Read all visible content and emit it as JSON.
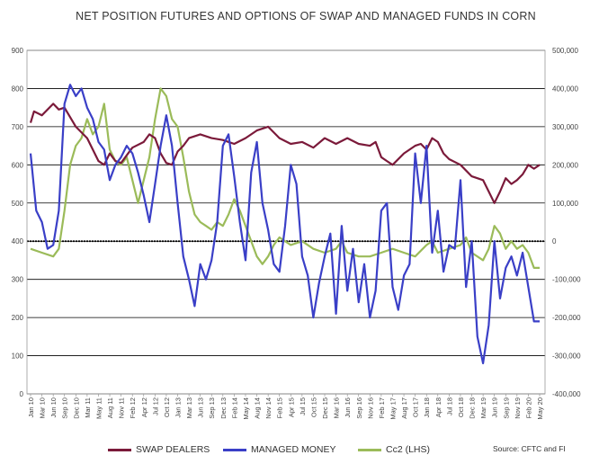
{
  "chart_data": {
    "type": "line",
    "title": "NET POSITION FUTURES AND OPTIONS OF SWAP AND MANAGED FUNDS IN CORN",
    "left_axis": {
      "ticks": [
        0,
        100,
        200,
        300,
        400,
        500,
        600,
        700,
        800,
        900
      ],
      "range": [
        0,
        900
      ]
    },
    "right_axis": {
      "ticks": [
        -400000,
        -300000,
        -200000,
        -100000,
        0,
        100000,
        200000,
        300000,
        400000,
        500000
      ],
      "tick_labels": [
        "-400,000",
        "-300,000",
        "-200,000",
        "-100,000",
        "0",
        "100,000",
        "200,000",
        "300,000",
        "400,000",
        "500,000"
      ],
      "range": [
        -400000,
        500000
      ]
    },
    "x_tick_labels": [
      "Jan 10",
      "Mar 10",
      "Jun 10",
      "Sep 10",
      "Dec 10",
      "Mar 11",
      "May 11",
      "Aug 11",
      "Nov 11",
      "Feb 12",
      "Apr 12",
      "Jul 12",
      "Oct 12",
      "Jan 13",
      "Mar 13",
      "Jun 13",
      "Sep 13",
      "Dec 13",
      "Feb 14",
      "May 14",
      "Aug 14",
      "Nov 14",
      "Feb 15",
      "Apr 15",
      "Jul 15",
      "Oct 15",
      "Dec 15",
      "Mar 16",
      "Jun 16",
      "Sep 16",
      "Nov 16",
      "Feb 17",
      "May 17",
      "Aug 17",
      "Oct 17",
      "Jan 18",
      "Apr 18",
      "Jul 18",
      "Oct 18",
      "Dec 18",
      "Mar 19",
      "Jun 19",
      "Sep 19",
      "Nov 19",
      "Feb 20",
      "May 20"
    ],
    "x_range": [
      0,
      45
    ],
    "grid": "horizontal",
    "legend": "bottom",
    "series": [
      {
        "name": "SWAP DEALERS",
        "axis": "right",
        "color": "#7b1a3a",
        "points": [
          [
            0,
            310000
          ],
          [
            0.3,
            340000
          ],
          [
            1,
            330000
          ],
          [
            2,
            360000
          ],
          [
            2.5,
            345000
          ],
          [
            3,
            350000
          ],
          [
            3.5,
            325000
          ],
          [
            4,
            300000
          ],
          [
            5,
            270000
          ],
          [
            5.5,
            240000
          ],
          [
            6,
            210000
          ],
          [
            6.5,
            200000
          ],
          [
            7,
            230000
          ],
          [
            7.5,
            210000
          ],
          [
            8,
            205000
          ],
          [
            9,
            245000
          ],
          [
            10,
            260000
          ],
          [
            10.5,
            280000
          ],
          [
            11,
            270000
          ],
          [
            11.5,
            230000
          ],
          [
            12,
            205000
          ],
          [
            12.5,
            200000
          ],
          [
            13,
            235000
          ],
          [
            13.5,
            250000
          ],
          [
            14,
            270000
          ],
          [
            15,
            280000
          ],
          [
            16,
            270000
          ],
          [
            17,
            265000
          ],
          [
            18,
            255000
          ],
          [
            19,
            270000
          ],
          [
            20,
            290000
          ],
          [
            21,
            300000
          ],
          [
            22,
            270000
          ],
          [
            23,
            255000
          ],
          [
            24,
            260000
          ],
          [
            25,
            245000
          ],
          [
            26,
            270000
          ],
          [
            27,
            255000
          ],
          [
            28,
            270000
          ],
          [
            29,
            255000
          ],
          [
            30,
            250000
          ],
          [
            30.5,
            260000
          ],
          [
            31,
            220000
          ],
          [
            31.5,
            210000
          ],
          [
            32,
            200000
          ],
          [
            33,
            230000
          ],
          [
            34,
            250000
          ],
          [
            34.5,
            255000
          ],
          [
            35,
            240000
          ],
          [
            35.5,
            270000
          ],
          [
            36,
            260000
          ],
          [
            36.5,
            230000
          ],
          [
            37,
            215000
          ],
          [
            38,
            200000
          ],
          [
            39,
            170000
          ],
          [
            40,
            160000
          ],
          [
            40.5,
            130000
          ],
          [
            41,
            100000
          ],
          [
            41.5,
            130000
          ],
          [
            42,
            165000
          ],
          [
            42.5,
            150000
          ],
          [
            43,
            160000
          ],
          [
            43.5,
            175000
          ],
          [
            44,
            200000
          ],
          [
            44.5,
            190000
          ],
          [
            45,
            200000
          ]
        ]
      },
      {
        "name": "MANAGED MONEY",
        "axis": "right",
        "color": "#3a3fc7",
        "points": [
          [
            0,
            230000
          ],
          [
            0.5,
            80000
          ],
          [
            1,
            50000
          ],
          [
            1.5,
            -20000
          ],
          [
            2,
            -10000
          ],
          [
            2.5,
            80000
          ],
          [
            3,
            360000
          ],
          [
            3.5,
            410000
          ],
          [
            4,
            380000
          ],
          [
            4.5,
            400000
          ],
          [
            5,
            350000
          ],
          [
            5.5,
            320000
          ],
          [
            6,
            260000
          ],
          [
            6.5,
            240000
          ],
          [
            7,
            160000
          ],
          [
            7.5,
            200000
          ],
          [
            8,
            220000
          ],
          [
            8.5,
            250000
          ],
          [
            9,
            230000
          ],
          [
            9.5,
            180000
          ],
          [
            10,
            120000
          ],
          [
            10.5,
            50000
          ],
          [
            11,
            150000
          ],
          [
            11.5,
            250000
          ],
          [
            12,
            330000
          ],
          [
            12.5,
            250000
          ],
          [
            13,
            100000
          ],
          [
            13.5,
            -40000
          ],
          [
            14,
            -100000
          ],
          [
            14.5,
            -170000
          ],
          [
            15,
            -60000
          ],
          [
            15.5,
            -100000
          ],
          [
            16,
            -50000
          ],
          [
            16.5,
            50000
          ],
          [
            17,
            250000
          ],
          [
            17.5,
            280000
          ],
          [
            18,
            170000
          ],
          [
            18.5,
            50000
          ],
          [
            19,
            -50000
          ],
          [
            19.5,
            180000
          ],
          [
            20,
            260000
          ],
          [
            20.5,
            100000
          ],
          [
            21,
            30000
          ],
          [
            21.5,
            -60000
          ],
          [
            22,
            -80000
          ],
          [
            22.5,
            40000
          ],
          [
            23,
            200000
          ],
          [
            23.5,
            150000
          ],
          [
            24,
            -40000
          ],
          [
            24.5,
            -90000
          ],
          [
            25,
            -200000
          ],
          [
            25.5,
            -110000
          ],
          [
            26,
            -40000
          ],
          [
            26.5,
            20000
          ],
          [
            27,
            -190000
          ],
          [
            27.5,
            40000
          ],
          [
            28,
            -130000
          ],
          [
            28.5,
            -20000
          ],
          [
            29,
            -160000
          ],
          [
            29.5,
            -60000
          ],
          [
            30,
            -200000
          ],
          [
            30.5,
            -130000
          ],
          [
            31,
            80000
          ],
          [
            31.5,
            100000
          ],
          [
            32,
            -120000
          ],
          [
            32.5,
            -180000
          ],
          [
            33,
            -90000
          ],
          [
            33.5,
            -60000
          ],
          [
            34,
            230000
          ],
          [
            34.5,
            100000
          ],
          [
            35,
            250000
          ],
          [
            35.5,
            -30000
          ],
          [
            36,
            80000
          ],
          [
            36.5,
            -80000
          ],
          [
            37,
            -10000
          ],
          [
            37.5,
            -20000
          ],
          [
            38,
            160000
          ],
          [
            38.5,
            -120000
          ],
          [
            39,
            0
          ],
          [
            39.5,
            -250000
          ],
          [
            40,
            -320000
          ],
          [
            40.5,
            -220000
          ],
          [
            41,
            0
          ],
          [
            41.5,
            -150000
          ],
          [
            42,
            -70000
          ],
          [
            42.5,
            -40000
          ],
          [
            43,
            -90000
          ],
          [
            43.5,
            -30000
          ],
          [
            44,
            -120000
          ],
          [
            44.5,
            -210000
          ],
          [
            45,
            -210000
          ]
        ]
      },
      {
        "name": "Cc2 (LHS)",
        "axis": "left",
        "color": "#9bbb59",
        "points": [
          [
            0,
            380
          ],
          [
            1,
            370
          ],
          [
            2,
            360
          ],
          [
            2.5,
            380
          ],
          [
            3,
            480
          ],
          [
            3.5,
            600
          ],
          [
            4,
            650
          ],
          [
            4.5,
            670
          ],
          [
            5,
            720
          ],
          [
            5.5,
            680
          ],
          [
            6,
            700
          ],
          [
            6.5,
            760
          ],
          [
            7,
            640
          ],
          [
            7.5,
            610
          ],
          [
            8,
            600
          ],
          [
            8.5,
            620
          ],
          [
            9,
            560
          ],
          [
            9.5,
            500
          ],
          [
            10,
            560
          ],
          [
            10.5,
            620
          ],
          [
            11,
            720
          ],
          [
            11.5,
            800
          ],
          [
            12,
            780
          ],
          [
            12.5,
            720
          ],
          [
            13,
            700
          ],
          [
            13.5,
            620
          ],
          [
            14,
            530
          ],
          [
            14.5,
            470
          ],
          [
            15,
            450
          ],
          [
            15.5,
            440
          ],
          [
            16,
            430
          ],
          [
            16.5,
            450
          ],
          [
            17,
            440
          ],
          [
            17.5,
            470
          ],
          [
            18,
            510
          ],
          [
            18.5,
            480
          ],
          [
            19,
            440
          ],
          [
            19.5,
            400
          ],
          [
            20,
            360
          ],
          [
            20.5,
            340
          ],
          [
            21,
            360
          ],
          [
            21.5,
            390
          ],
          [
            22,
            410
          ],
          [
            23,
            390
          ],
          [
            24,
            400
          ],
          [
            25,
            380
          ],
          [
            26,
            370
          ],
          [
            27,
            380
          ],
          [
            27.5,
            400
          ],
          [
            28,
            370
          ],
          [
            29,
            360
          ],
          [
            30,
            360
          ],
          [
            31,
            370
          ],
          [
            32,
            380
          ],
          [
            33,
            370
          ],
          [
            34,
            360
          ],
          [
            35,
            390
          ],
          [
            35.5,
            400
          ],
          [
            36,
            370
          ],
          [
            37,
            380
          ],
          [
            38,
            390
          ],
          [
            38.5,
            410
          ],
          [
            39,
            370
          ],
          [
            40,
            350
          ],
          [
            40.5,
            380
          ],
          [
            41,
            440
          ],
          [
            41.5,
            420
          ],
          [
            42,
            380
          ],
          [
            42.5,
            400
          ],
          [
            43,
            380
          ],
          [
            43.5,
            390
          ],
          [
            44,
            370
          ],
          [
            44.5,
            330
          ],
          [
            45,
            330
          ]
        ]
      }
    ]
  },
  "legend": {
    "items": [
      {
        "label": "SWAP DEALERS",
        "color": "#7b1a3a"
      },
      {
        "label": "MANAGED MONEY",
        "color": "#3a3fc7"
      },
      {
        "label": "Cc2 (LHS)",
        "color": "#9bbb59"
      }
    ]
  },
  "source": "Source: CFTC and FI"
}
